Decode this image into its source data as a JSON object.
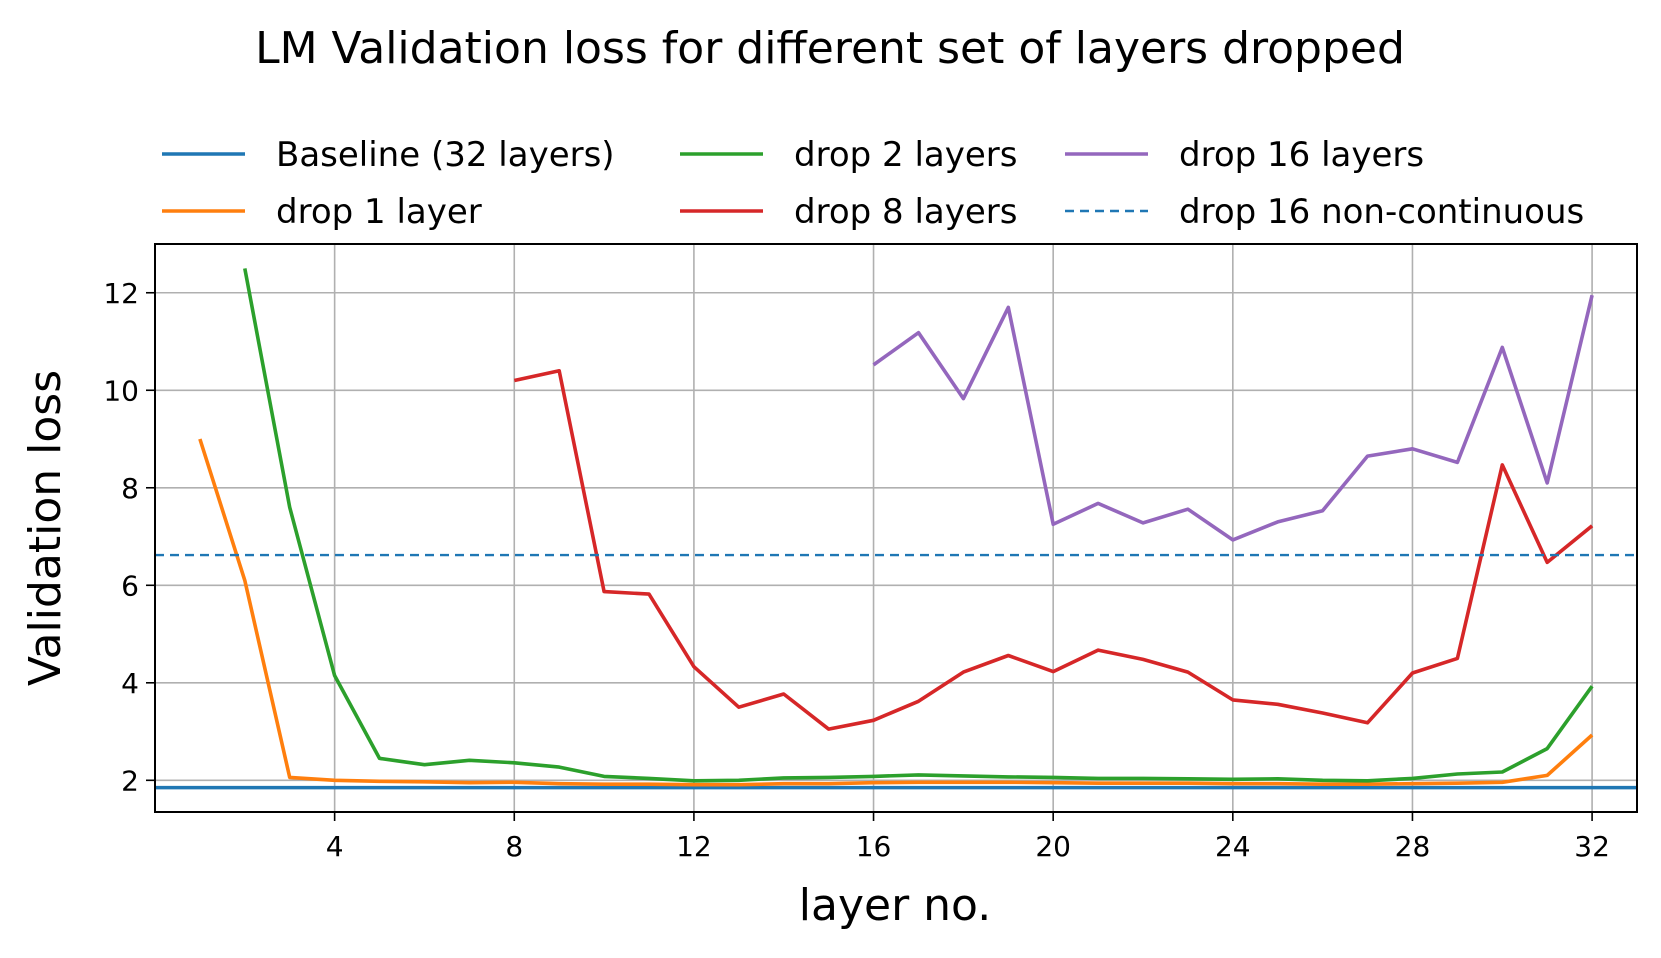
{
  "chart_data": {
    "type": "line",
    "title": "LM Validation loss for different set of layers dropped",
    "xlabel": "layer no.",
    "ylabel": "Validation loss",
    "xlim": [
      0,
      33
    ],
    "ylim": [
      1.35,
      13
    ],
    "xticks": [
      4,
      8,
      12,
      16,
      20,
      24,
      28,
      32
    ],
    "yticks": [
      2,
      4,
      6,
      8,
      10,
      12
    ],
    "grid": true,
    "legend_location": "top, outside plot, 3 columns",
    "series": [
      {
        "name": "Baseline (32 layers)",
        "color": "#1f77b4",
        "style": "solid",
        "kind": "hline",
        "y": 1.85
      },
      {
        "name": "drop 1 layer",
        "color": "#ff7f0e",
        "style": "solid",
        "x": [
          1,
          2,
          3,
          4,
          5,
          6,
          7,
          8,
          9,
          10,
          11,
          12,
          13,
          14,
          15,
          16,
          17,
          18,
          19,
          20,
          21,
          22,
          23,
          24,
          25,
          26,
          27,
          28,
          29,
          30,
          31,
          32
        ],
        "values": [
          9.0,
          6.1,
          2.06,
          2.0,
          1.98,
          1.97,
          1.95,
          1.96,
          1.93,
          1.92,
          1.92,
          1.91,
          1.91,
          1.93,
          1.93,
          1.95,
          1.96,
          1.96,
          1.96,
          1.95,
          1.94,
          1.94,
          1.94,
          1.93,
          1.93,
          1.92,
          1.92,
          1.93,
          1.94,
          1.96,
          2.1,
          2.93
        ]
      },
      {
        "name": "drop 2 layers",
        "color": "#2ca02c",
        "style": "solid",
        "x": [
          2,
          3,
          4,
          5,
          6,
          7,
          8,
          9,
          10,
          11,
          12,
          13,
          14,
          15,
          16,
          17,
          18,
          19,
          20,
          21,
          22,
          23,
          24,
          25,
          26,
          27,
          28,
          29,
          30,
          31,
          32
        ],
        "values": [
          12.5,
          7.6,
          4.15,
          2.45,
          2.32,
          2.41,
          2.36,
          2.27,
          2.08,
          2.04,
          1.99,
          2.0,
          2.05,
          2.06,
          2.08,
          2.11,
          2.09,
          2.07,
          2.06,
          2.04,
          2.04,
          2.03,
          2.02,
          2.03,
          2.0,
          1.99,
          2.04,
          2.13,
          2.17,
          2.65,
          3.93
        ]
      },
      {
        "name": "drop 8 layers",
        "color": "#d62728",
        "style": "solid",
        "x": [
          8,
          9,
          10,
          11,
          12,
          13,
          14,
          15,
          16,
          17,
          18,
          19,
          20,
          21,
          22,
          23,
          24,
          25,
          26,
          27,
          28,
          29,
          30,
          31,
          32
        ],
        "values": [
          10.2,
          10.4,
          5.87,
          5.82,
          4.33,
          3.5,
          3.77,
          3.05,
          3.23,
          3.62,
          4.22,
          4.56,
          4.23,
          4.67,
          4.48,
          4.22,
          3.65,
          3.56,
          3.38,
          3.18,
          4.2,
          4.5,
          8.47,
          6.47,
          7.22
        ]
      },
      {
        "name": "drop 16 layers",
        "color": "#9467bd",
        "style": "solid",
        "x": [
          16,
          17,
          18,
          19,
          20,
          21,
          22,
          23,
          24,
          25,
          26,
          27,
          28,
          29,
          30,
          31,
          32
        ],
        "values": [
          10.52,
          11.18,
          9.83,
          11.7,
          7.25,
          7.68,
          7.28,
          7.56,
          6.93,
          7.3,
          7.53,
          8.65,
          8.8,
          8.52,
          10.88,
          8.1,
          11.95
        ]
      },
      {
        "name": "drop 16 non-continuous",
        "color": "#1f77b4",
        "style": "dashed",
        "kind": "hline",
        "y": 6.62
      }
    ]
  }
}
